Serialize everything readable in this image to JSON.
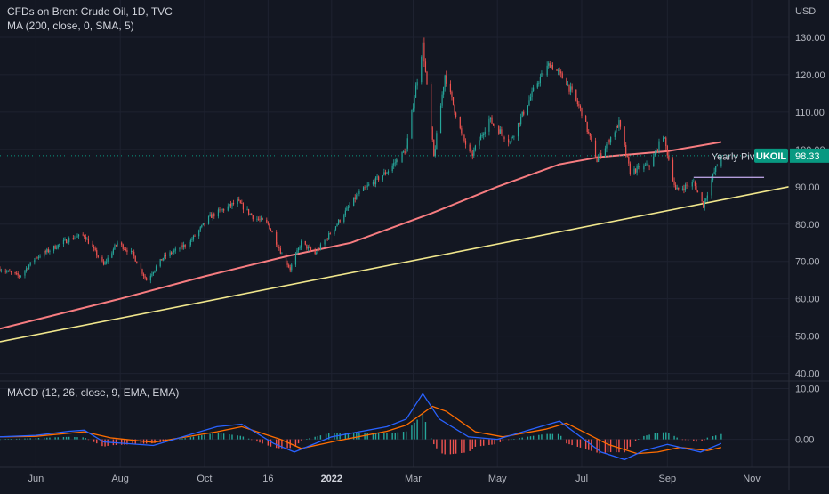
{
  "header": {
    "title": "CFDs on Brent Crude Oil, 1D, TVC",
    "ma_label": "MA (200, close, 0, SMA, 5)",
    "macd_label": "MACD (12, 26, close, 9, EMA, EMA)",
    "currency": "USD"
  },
  "colors": {
    "background": "#131722",
    "grid": "#1e2230",
    "axis_text": "#b2b5be",
    "candle_up": "#26a69a",
    "candle_down": "#ef5350",
    "ma_line": "#f77c80",
    "trend_line": "#f0e68c",
    "pivot_line": "#b39ddb",
    "price_tag": "#089981",
    "macd_line": "#2962ff",
    "signal_line": "#ff6d00"
  },
  "chart_data": {
    "type": "candlestick",
    "title": "CFDs on Brent Crude Oil, 1D, TVC",
    "x_tick_labels": [
      "Jun",
      "Aug",
      "Oct",
      "16",
      "2022",
      "Mar",
      "May",
      "Jul",
      "Sep",
      "Nov"
    ],
    "x_tick_dates": [
      "2021-06-01",
      "2021-08-01",
      "2021-10-01",
      "2021-11-16",
      "2022-01-01",
      "2022-03-01",
      "2022-05-01",
      "2022-07-01",
      "2022-09-01",
      "2022-11-01"
    ],
    "x_range": [
      "2021-05-06",
      "2022-11-28"
    ],
    "y_ticks": [
      130.0,
      120.0,
      110.0,
      100.0,
      90.0,
      80.0,
      70.0,
      60.0,
      50.0,
      40.0
    ],
    "y_tick_labels": [
      "130.00",
      "120.00",
      "110.00",
      "100.00",
      "90.00",
      "80.00",
      "70.00",
      "60.00",
      "50.00",
      "40.00"
    ],
    "ylim": [
      38,
      140
    ],
    "grid": true,
    "price_keypoints": [
      [
        "2021-05-06",
        68
      ],
      [
        "2021-05-20",
        66
      ],
      [
        "2021-06-01",
        71
      ],
      [
        "2021-06-25",
        76
      ],
      [
        "2021-07-06",
        77
      ],
      [
        "2021-07-20",
        69
      ],
      [
        "2021-07-30",
        75
      ],
      [
        "2021-08-10",
        72
      ],
      [
        "2021-08-20",
        65
      ],
      [
        "2021-09-01",
        71
      ],
      [
        "2021-09-20",
        75
      ],
      [
        "2021-10-05",
        82
      ],
      [
        "2021-10-25",
        86
      ],
      [
        "2021-11-05",
        82
      ],
      [
        "2021-11-16",
        80
      ],
      [
        "2021-11-26",
        72
      ],
      [
        "2021-12-02",
        68
      ],
      [
        "2021-12-10",
        75
      ],
      [
        "2021-12-20",
        72
      ],
      [
        "2022-01-01",
        78
      ],
      [
        "2022-01-20",
        88
      ],
      [
        "2022-02-10",
        94
      ],
      [
        "2022-02-24",
        100
      ],
      [
        "2022-03-01",
        112
      ],
      [
        "2022-03-08",
        128
      ],
      [
        "2022-03-16",
        98
      ],
      [
        "2022-03-24",
        120
      ],
      [
        "2022-04-05",
        104
      ],
      [
        "2022-04-12",
        98
      ],
      [
        "2022-04-25",
        108
      ],
      [
        "2022-05-10",
        102
      ],
      [
        "2022-05-30",
        118
      ],
      [
        "2022-06-08",
        123
      ],
      [
        "2022-06-20",
        118
      ],
      [
        "2022-07-01",
        110
      ],
      [
        "2022-07-12",
        97
      ],
      [
        "2022-07-28",
        107
      ],
      [
        "2022-08-05",
        94
      ],
      [
        "2022-08-20",
        96
      ],
      [
        "2022-08-29",
        104
      ],
      [
        "2022-09-07",
        89
      ],
      [
        "2022-09-20",
        91
      ],
      [
        "2022-09-27",
        85
      ],
      [
        "2022-10-05",
        94
      ],
      [
        "2022-10-10",
        98.33
      ]
    ],
    "overlays": {
      "ma": {
        "name": "MA (200, close, 0, SMA, 5)",
        "points": [
          [
            "2021-05-06",
            52
          ],
          [
            "2021-08-01",
            60
          ],
          [
            "2021-10-01",
            66
          ],
          [
            "2021-12-01",
            71.5
          ],
          [
            "2022-01-15",
            75
          ],
          [
            "2022-03-15",
            83
          ],
          [
            "2022-05-01",
            90
          ],
          [
            "2022-06-15",
            96
          ],
          [
            "2022-07-15",
            98
          ],
          [
            "2022-09-01",
            99.5
          ],
          [
            "2022-10-10",
            102
          ]
        ]
      },
      "trend_line": [
        [
          "2021-05-06",
          48.5
        ],
        [
          "2022-11-28",
          90
        ]
      ],
      "pivot": {
        "label": "Yearly Pivot",
        "value": 92.5,
        "start": "2022-09-20",
        "end": "2022-11-10"
      }
    },
    "last_price": {
      "symbol": "UKOIL",
      "value": "98.33"
    },
    "macd": {
      "label": "MACD (12, 26, close, 9, EMA, EMA)",
      "y_ticks": [
        10.0,
        0.0
      ],
      "y_tick_labels": [
        "10.00",
        "0.00"
      ],
      "ylim": [
        -5.5,
        11.5
      ],
      "macd_points": [
        [
          "2021-05-06",
          0.5
        ],
        [
          "2021-06-01",
          0.8
        ],
        [
          "2021-06-25",
          1.6
        ],
        [
          "2021-07-06",
          1.8
        ],
        [
          "2021-07-20",
          -0.5
        ],
        [
          "2021-08-25",
          -1.2
        ],
        [
          "2021-10-10",
          2.5
        ],
        [
          "2021-10-28",
          3
        ],
        [
          "2021-11-20",
          -0.8
        ],
        [
          "2021-12-05",
          -2.5
        ],
        [
          "2022-01-01",
          0.5
        ],
        [
          "2022-02-10",
          2.5
        ],
        [
          "2022-02-24",
          4
        ],
        [
          "2022-03-08",
          9
        ],
        [
          "2022-03-20",
          4
        ],
        [
          "2022-04-10",
          0.5
        ],
        [
          "2022-05-01",
          0
        ],
        [
          "2022-06-01",
          2.5
        ],
        [
          "2022-06-15",
          3.6
        ],
        [
          "2022-07-15",
          -2.5
        ],
        [
          "2022-08-01",
          -4
        ],
        [
          "2022-08-15",
          -2.2
        ],
        [
          "2022-09-01",
          -1
        ],
        [
          "2022-09-25",
          -2.5
        ],
        [
          "2022-10-10",
          -0.8
        ]
      ],
      "signal_points": [
        [
          "2021-05-06",
          0.5
        ],
        [
          "2021-06-01",
          0.6
        ],
        [
          "2021-07-06",
          1.5
        ],
        [
          "2021-07-25",
          0.3
        ],
        [
          "2021-08-25",
          -0.6
        ],
        [
          "2021-10-10",
          1.5
        ],
        [
          "2021-10-28",
          2.5
        ],
        [
          "2021-11-25",
          0
        ],
        [
          "2021-12-10",
          -1.8
        ],
        [
          "2022-01-05",
          -0.3
        ],
        [
          "2022-02-10",
          1.6
        ],
        [
          "2022-02-24",
          2.8
        ],
        [
          "2022-03-15",
          6.5
        ],
        [
          "2022-03-25",
          5.5
        ],
        [
          "2022-04-15",
          1.5
        ],
        [
          "2022-05-05",
          0.5
        ],
        [
          "2022-06-05",
          2
        ],
        [
          "2022-06-20",
          3.2
        ],
        [
          "2022-07-20",
          -1
        ],
        [
          "2022-08-10",
          -2.8
        ],
        [
          "2022-08-25",
          -2.5
        ],
        [
          "2022-09-10",
          -1.6
        ],
        [
          "2022-09-30",
          -2.2
        ],
        [
          "2022-10-10",
          -1.6
        ]
      ]
    }
  }
}
